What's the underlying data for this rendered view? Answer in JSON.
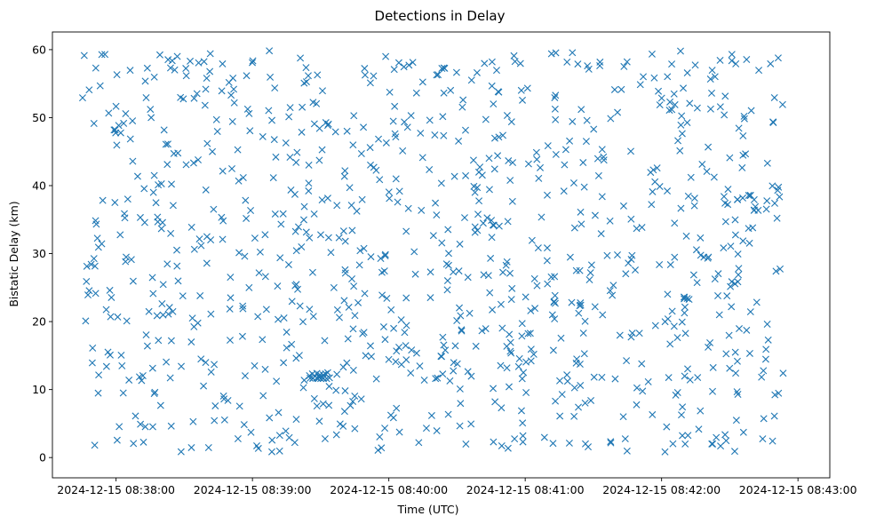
{
  "chart_data": {
    "type": "scatter",
    "title": "Detections in Delay",
    "xlabel": "Time (UTC)",
    "ylabel": "Bistatic Delay (km)",
    "marker": "x",
    "color": "#1f77b4",
    "xlim_seconds": [
      -28,
      314
    ],
    "ylim": [
      -2.98,
      62.6
    ],
    "x_ticks": [
      {
        "seconds": 0,
        "label": "2024-12-15 08:38:00"
      },
      {
        "seconds": 60,
        "label": "2024-12-15 08:39:00"
      },
      {
        "seconds": 120,
        "label": "2024-12-15 08:40:00"
      },
      {
        "seconds": 180,
        "label": "2024-12-15 08:41:00"
      },
      {
        "seconds": 240,
        "label": "2024-12-15 08:42:00"
      },
      {
        "seconds": 300,
        "label": "2024-12-15 08:43:00"
      }
    ],
    "y_ticks": [
      0,
      10,
      20,
      30,
      40,
      50,
      60
    ],
    "x_start_label": "2024-12-15 08:37:45",
    "x_end_label": "2024-12-15 08:42:54",
    "num_points": 1000,
    "series": [
      {
        "name": "Detections",
        "points_seed": 20241215,
        "clusters": [
          {
            "t": 89,
            "y": 12.0,
            "count": 16,
            "spread_t": 4,
            "spread_y": 0.4
          },
          {
            "t": 278,
            "y": 37.5,
            "count": 12,
            "spread_t": 14,
            "spread_y": 1.2
          },
          {
            "t": 251,
            "y": 23.5,
            "count": 5,
            "spread_t": 1.5,
            "spread_y": 0.3
          }
        ]
      }
    ]
  }
}
